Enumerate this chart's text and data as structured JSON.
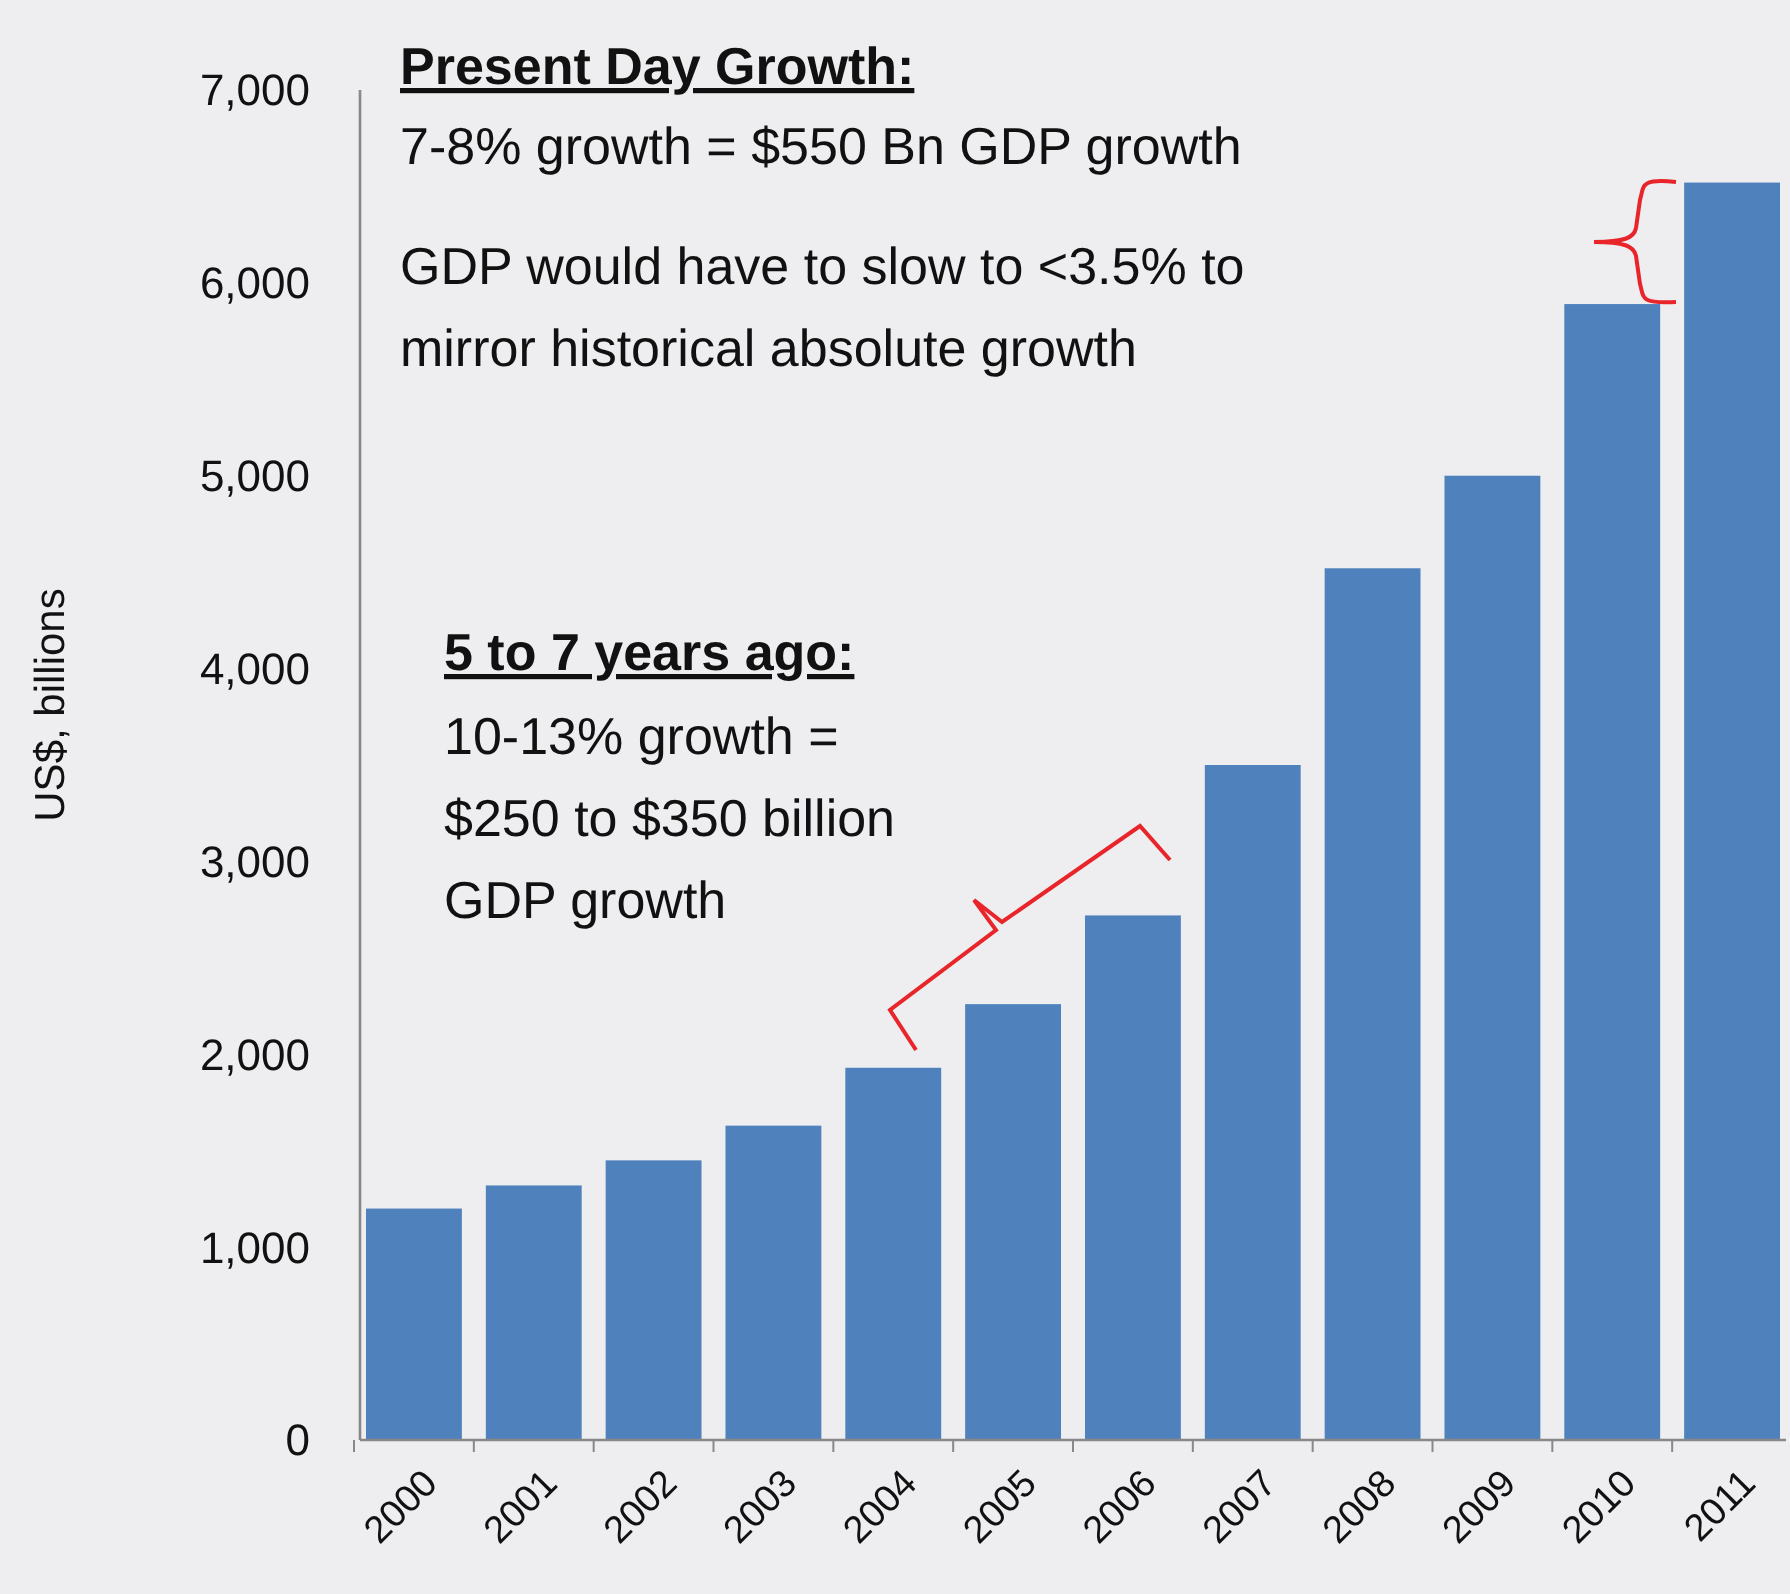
{
  "chart_data": {
    "type": "bar",
    "ylabel": "US$, billions",
    "categories": [
      "2000",
      "2001",
      "2002",
      "2003",
      "2004",
      "2005",
      "2006",
      "2007",
      "2008",
      "2009",
      "2010",
      "2011"
    ],
    "values": [
      1200,
      1320,
      1450,
      1630,
      1930,
      2260,
      2720,
      3500,
      4520,
      5000,
      5890,
      6520
    ],
    "color": "#4f81bd",
    "ylim": [
      0,
      7000
    ],
    "yticks": [
      {
        "value": 0,
        "label": "0"
      },
      {
        "value": 1000,
        "label": "1,000"
      },
      {
        "value": 2000,
        "label": "2,000"
      },
      {
        "value": 3000,
        "label": "3,000"
      },
      {
        "value": 4000,
        "label": "4,000"
      },
      {
        "value": 5000,
        "label": "5,000"
      },
      {
        "value": 6000,
        "label": "6,000"
      },
      {
        "value": 7000,
        "label": "7,000"
      }
    ],
    "grid": false,
    "annotations": [
      "Present Day Growth:",
      "7-8% growth = $550 Bn GDP growth",
      "GDP would have to slow to <3.5% to\nmirror historical absolute growth",
      "5 to 7 years ago:",
      "10-13% growth =\n$250 to $350 billion\nGDP growth"
    ]
  }
}
